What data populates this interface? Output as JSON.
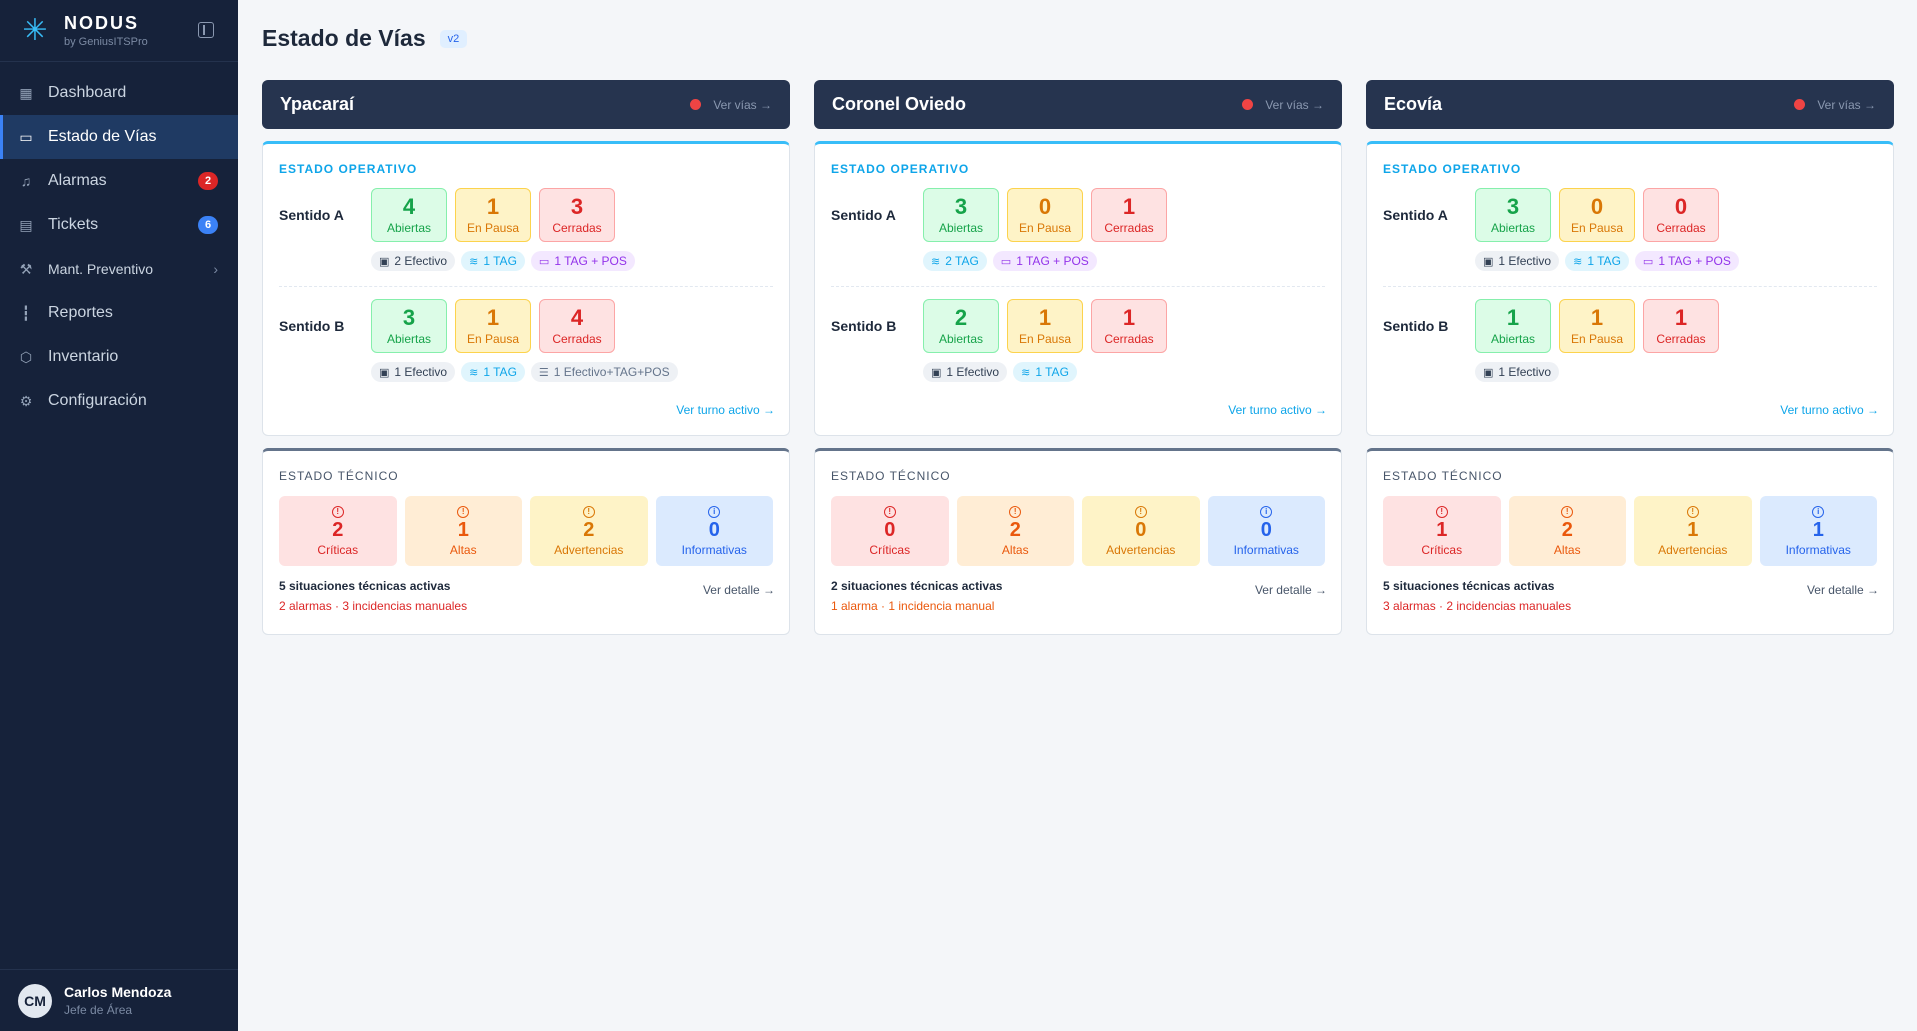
{
  "brand": {
    "name": "NODUS",
    "subtitle": "by GeniusITSPro"
  },
  "nav": [
    {
      "label": "Dashboard",
      "icon": "grid-icon"
    },
    {
      "label": "Estado de Vías",
      "icon": "monitor-icon",
      "active": true
    },
    {
      "label": "Alarmas",
      "icon": "bell-icon",
      "badge": "2"
    },
    {
      "label": "Tickets",
      "icon": "clipboard-icon",
      "badge": "6"
    },
    {
      "label": "Mant. Preventivo",
      "icon": "wrench-icon"
    },
    {
      "label": "Reportes",
      "icon": "bar-chart-icon"
    },
    {
      "label": "Inventario",
      "icon": "box-icon"
    },
    {
      "label": "Configuración",
      "icon": "gear-icon"
    }
  ],
  "user": {
    "initials": "CM",
    "name": "Carlos Mendoza",
    "role": "Jefe de Área"
  },
  "page": {
    "title": "Estado de Vías",
    "version": "v2"
  },
  "labels": {
    "ver_vias": "Ver vías →",
    "estado_operativo": "ESTADO OPERATIVO",
    "estado_tecnico": "ESTADO TÉCNICO",
    "sentido_a": "Sentido A",
    "sentido_b": "Sentido B",
    "abiertas": "Abiertas",
    "en_pausa": "En Pausa",
    "cerradas": "Cerradas",
    "ver_turno": "Ver turno activo →",
    "criticas": "Críticas",
    "altas": "Altas",
    "advertencias": "Advertencias",
    "informativas": "Informativas",
    "ver_detalle": "Ver detalle →"
  },
  "sites": [
    {
      "name": "Ypacaraí",
      "a": {
        "abiertas": "4",
        "pausa": "1",
        "cerradas": "3"
      },
      "a_chips": [
        "2 Efectivo",
        "1 TAG",
        "1 TAG + POS"
      ],
      "b": {
        "abiertas": "3",
        "pausa": "1",
        "cerradas": "4"
      },
      "b_chips": [
        "1 Efectivo",
        "1 TAG",
        "1 Efectivo+TAG+POS"
      ],
      "tech": {
        "criticas": "2",
        "altas": "1",
        "advertencias": "2",
        "informativas": "0"
      },
      "summary": "5 situaciones técnicas activas",
      "sub": "2 alarmas · 3 incidencias manuales"
    },
    {
      "name": "Coronel Oviedo",
      "a": {
        "abiertas": "3",
        "pausa": "0",
        "cerradas": "1"
      },
      "a_chips": [
        "2 TAG",
        "1 TAG + POS"
      ],
      "b": {
        "abiertas": "2",
        "pausa": "1",
        "cerradas": "1"
      },
      "b_chips": [
        "1 Efectivo",
        "1 TAG"
      ],
      "tech": {
        "criticas": "0",
        "altas": "2",
        "advertencias": "0",
        "informativas": "0"
      },
      "summary": "2 situaciones técnicas activas",
      "sub": "1 alarma · 1 incidencia manual"
    },
    {
      "name": "Ecovía",
      "a": {
        "abiertas": "3",
        "pausa": "0",
        "cerradas": "0"
      },
      "a_chips": [
        "1 Efectivo",
        "1 TAG",
        "1 TAG + POS"
      ],
      "b": {
        "abiertas": "1",
        "pausa": "1",
        "cerradas": "1"
      },
      "b_chips": [
        "1 Efectivo"
      ],
      "tech": {
        "criticas": "1",
        "altas": "2",
        "advertencias": "1",
        "informativas": "1"
      },
      "summary": "5 situaciones técnicas activas",
      "sub": "3 alarmas · 2 incidencias manuales"
    }
  ]
}
